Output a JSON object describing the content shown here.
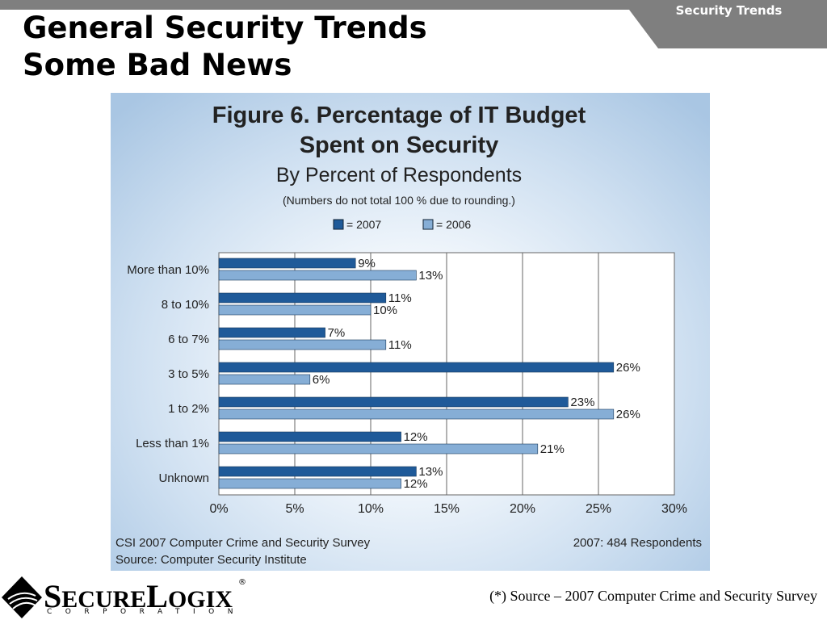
{
  "header": {
    "tab_label": "Security Trends",
    "title_line1": "General Security Trends",
    "title_line2": "Some Bad News"
  },
  "chart_data": {
    "type": "bar",
    "orientation": "horizontal",
    "title_line1": "Figure 6. Percentage of IT Budget",
    "title_line2": "Spent on Security",
    "subtitle": "By Percent of Respondents",
    "note": "(Numbers do not total 100 % due to rounding.)",
    "categories": [
      "More than 10%",
      "8 to 10%",
      "6 to 7%",
      "3 to 5%",
      "1 to 2%",
      "Less than 1%",
      "Unknown"
    ],
    "series": [
      {
        "name": "= 2007",
        "color": "#1f5a99",
        "values": [
          9,
          11,
          7,
          26,
          23,
          12,
          13
        ]
      },
      {
        "name": "= 2006",
        "color": "#86aed6",
        "values": [
          13,
          10,
          11,
          6,
          26,
          21,
          12
        ]
      }
    ],
    "value_suffix": "%",
    "xlim": [
      0,
      30
    ],
    "xticks": [
      "0%",
      "5%",
      "10%",
      "15%",
      "20%",
      "25%",
      "30%"
    ],
    "xtick_values": [
      0,
      5,
      10,
      15,
      20,
      25,
      30
    ],
    "grid": true,
    "legend_position": "top",
    "source_left_line1": "CSI 2007 Computer Crime and Security Survey",
    "source_left_line2": "Source: Computer Security Institute",
    "source_right": "2007: 484 Respondents"
  },
  "footer": {
    "note": "(*) Source – 2007 Computer Crime and Security Survey",
    "logo_text_part1": "S",
    "logo_text_part2": "ECURE",
    "logo_text_part3": "L",
    "logo_text_part4": "OGIX",
    "logo_reg": "®",
    "logo_sub": "CORPORATION"
  }
}
